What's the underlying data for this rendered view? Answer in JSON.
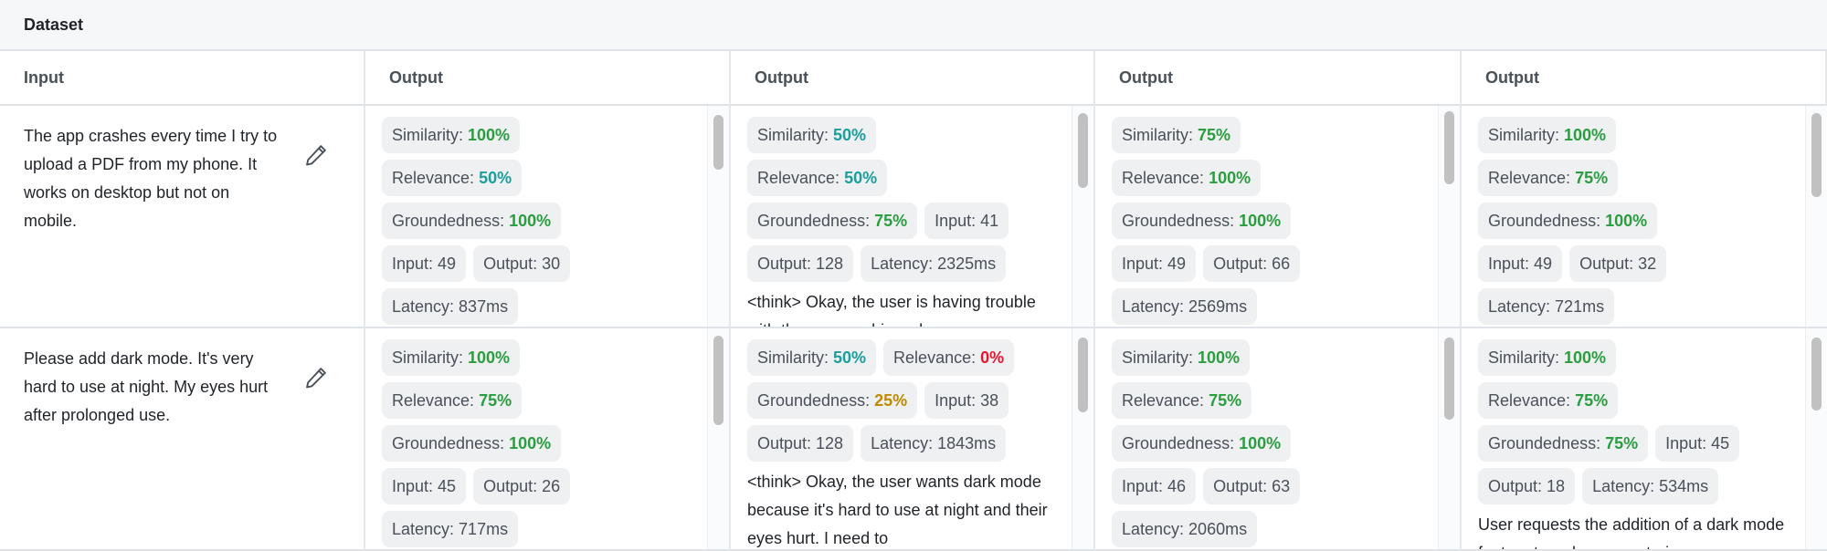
{
  "header": {
    "title": "Dataset"
  },
  "columns": [
    "Input",
    "Output",
    "Output",
    "Output",
    "Output"
  ],
  "colors": {
    "green": "#2a9d3f",
    "teal": "#1a9e9e",
    "red": "#e3162f",
    "amber": "#bf8a00"
  },
  "rows": [
    {
      "input": "The app crashes every time I try to upload a PDF from my phone. It works on desktop but not on mobile.",
      "outputs": [
        {
          "lines": [
            [
              {
                "label": "Similarity:",
                "value": "100%",
                "color": "green"
              }
            ],
            [
              {
                "label": "Relevance:",
                "value": "50%",
                "color": "teal"
              }
            ],
            [
              {
                "label": "Groundedness:",
                "value": "100%",
                "color": "green"
              }
            ],
            [
              {
                "label": "Input: 49"
              },
              {
                "label": "Output: 30"
              }
            ],
            [
              {
                "label": "Latency: 837ms"
              }
            ]
          ],
          "text": "",
          "scroll": 0
        },
        {
          "lines": [
            [
              {
                "label": "Similarity:",
                "value": "50%",
                "color": "teal"
              }
            ],
            [
              {
                "label": "Relevance:",
                "value": "50%",
                "color": "teal"
              }
            ],
            [
              {
                "label": "Groundedness:",
                "value": "75%",
                "color": "green"
              },
              {
                "label": "Input: 41"
              }
            ],
            [
              {
                "label": "Output: 128"
              },
              {
                "label": "Latency: 2325ms"
              }
            ]
          ],
          "text": "<think> Okay, the user is having trouble with the app crashing when",
          "scroll": 0
        },
        {
          "lines": [
            [
              {
                "label": "Similarity:",
                "value": "75%",
                "color": "green"
              }
            ],
            [
              {
                "label": "Relevance:",
                "value": "100%",
                "color": "green"
              }
            ],
            [
              {
                "label": "Groundedness:",
                "value": "100%",
                "color": "green"
              }
            ],
            [
              {
                "label": "Input: 49"
              },
              {
                "label": "Output: 66"
              }
            ],
            [
              {
                "label": "Latency: 2569ms"
              }
            ]
          ],
          "text": "",
          "scroll": 0
        },
        {
          "lines": [
            [
              {
                "label": "Similarity:",
                "value": "100%",
                "color": "green"
              }
            ],
            [
              {
                "label": "Relevance:",
                "value": "75%",
                "color": "green"
              }
            ],
            [
              {
                "label": "Groundedness:",
                "value": "100%",
                "color": "green"
              }
            ],
            [
              {
                "label": "Input: 49"
              },
              {
                "label": "Output: 32"
              }
            ],
            [
              {
                "label": "Latency: 721ms"
              }
            ]
          ],
          "text": "",
          "scroll": 0
        }
      ]
    },
    {
      "input": "Please add dark mode. It's very hard to use at night. My eyes hurt after prolonged use.",
      "outputs": [
        {
          "lines": [
            [
              {
                "label": "Similarity:",
                "value": "100%",
                "color": "green"
              }
            ],
            [
              {
                "label": "Relevance:",
                "value": "75%",
                "color": "green"
              }
            ],
            [
              {
                "label": "Groundedness:",
                "value": "100%",
                "color": "green"
              }
            ],
            [
              {
                "label": "Input: 45"
              },
              {
                "label": "Output: 26"
              }
            ],
            [
              {
                "label": "Latency: 717ms"
              }
            ]
          ],
          "text": "",
          "scroll": 0
        },
        {
          "lines": [
            [
              {
                "label": "Similarity:",
                "value": "50%",
                "color": "teal"
              },
              {
                "label": "Relevance:",
                "value": "0%",
                "color": "red"
              }
            ],
            [
              {
                "label": "Groundedness:",
                "value": "25%",
                "color": "amber"
              },
              {
                "label": "Input: 38"
              }
            ],
            [
              {
                "label": "Output: 128"
              },
              {
                "label": "Latency: 1843ms"
              }
            ]
          ],
          "text": "<think> Okay, the user wants dark mode because it's hard to use at night and their eyes hurt. I need to",
          "scroll": 0
        },
        {
          "lines": [
            [
              {
                "label": "Similarity:",
                "value": "100%",
                "color": "green"
              }
            ],
            [
              {
                "label": "Relevance:",
                "value": "75%",
                "color": "green"
              }
            ],
            [
              {
                "label": "Groundedness:",
                "value": "100%",
                "color": "green"
              }
            ],
            [
              {
                "label": "Input: 46"
              },
              {
                "label": "Output: 63"
              }
            ],
            [
              {
                "label": "Latency: 2060ms"
              }
            ]
          ],
          "text": "",
          "scroll": 0
        },
        {
          "lines": [
            [
              {
                "label": "Similarity:",
                "value": "100%",
                "color": "green"
              }
            ],
            [
              {
                "label": "Relevance:",
                "value": "75%",
                "color": "green"
              }
            ],
            [
              {
                "label": "Groundedness:",
                "value": "75%",
                "color": "green"
              },
              {
                "label": "Input: 45"
              }
            ],
            [
              {
                "label": "Output: 18"
              },
              {
                "label": "Latency: 534ms"
              }
            ]
          ],
          "text": "User requests the addition of a dark mode feature to reduce eye strain",
          "scroll": 0
        }
      ]
    }
  ]
}
